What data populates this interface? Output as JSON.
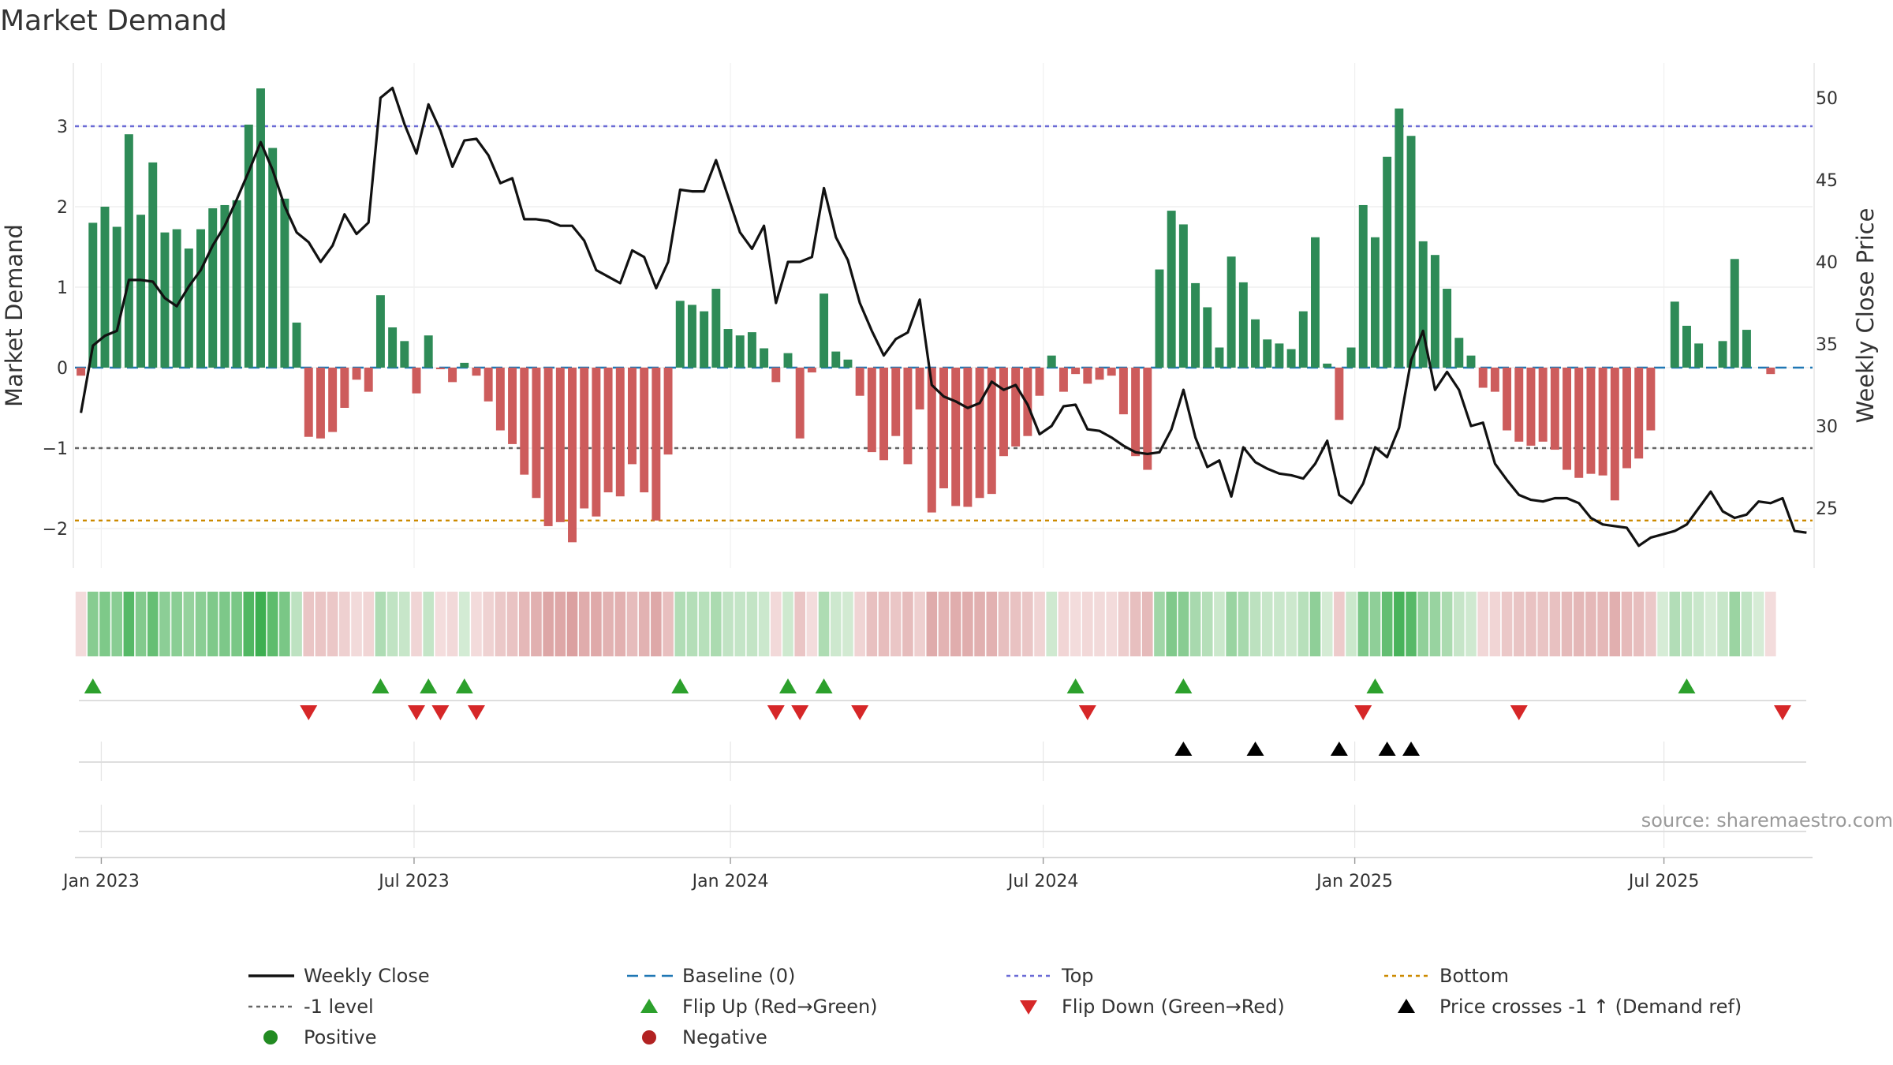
{
  "chart_data": {
    "type": "bar+line",
    "title": "Market Demand",
    "ylabel_left": "Market Demand",
    "ylabel_right": "Weekly Close Price",
    "ylim_left": [
      -2.5,
      3.7
    ],
    "ylim_right": [
      22,
      52
    ],
    "yticks_left": [
      3,
      2,
      1,
      0,
      -1,
      -2
    ],
    "ytick_labels_left": [
      "3",
      "2",
      "1",
      "0",
      "−1",
      "−2"
    ],
    "yticks_right": [
      50,
      45,
      40,
      35,
      30,
      25
    ],
    "ytick_labels_right": [
      "50",
      "45",
      "40",
      "35",
      "30",
      "25"
    ],
    "x_start": "2022-12-23",
    "week_count": 145,
    "x_ticks": [
      {
        "label": "Jan 2023",
        "week": 2.2
      },
      {
        "label": "Jul 2023",
        "week": 28.3
      },
      {
        "label": "Jan 2024",
        "week": 54.7
      },
      {
        "label": "Jul 2024",
        "week": 80.8
      },
      {
        "label": "Jan 2025",
        "week": 106.8
      },
      {
        "label": "Jul 2025",
        "week": 132.6
      }
    ],
    "reference_lines": [
      {
        "name": "Top",
        "value": 3.0,
        "color": "#6b6bd6"
      },
      {
        "name": "-1 level",
        "value": -1.0,
        "color": "#666666"
      },
      {
        "name": "Bottom",
        "value": -1.9,
        "color": "#cc8a00"
      },
      {
        "name": "Baseline (0)",
        "value": 0,
        "color": "#1f77b4"
      }
    ],
    "demand": [
      -0.1,
      1.8,
      2.0,
      1.75,
      2.9,
      1.9,
      2.55,
      1.68,
      1.72,
      1.48,
      1.72,
      1.98,
      2.02,
      2.08,
      3.02,
      3.47,
      2.73,
      2.1,
      0.56,
      -0.86,
      -0.88,
      -0.8,
      -0.5,
      -0.15,
      -0.3,
      0.9,
      0.5,
      0.33,
      -0.32,
      0.4,
      -0.02,
      -0.18,
      0.06,
      -0.1,
      -0.42,
      -0.78,
      -0.95,
      -1.33,
      -1.62,
      -1.97,
      -1.92,
      -2.17,
      -1.75,
      -1.85,
      -1.55,
      -1.6,
      -1.2,
      -1.55,
      -1.9,
      -1.08,
      0.83,
      0.78,
      0.7,
      0.98,
      0.48,
      0.4,
      0.44,
      0.24,
      -0.18,
      0.18,
      -0.88,
      -0.06,
      0.92,
      0.2,
      0.1,
      -0.35,
      -1.05,
      -1.15,
      -0.85,
      -1.2,
      -0.52,
      -1.8,
      -1.5,
      -1.72,
      -1.73,
      -1.62,
      -1.57,
      -1.1,
      -0.98,
      -0.85,
      -0.35,
      0.15,
      -0.3,
      -0.08,
      -0.2,
      -0.15,
      -0.1,
      -0.58,
      -1.1,
      -1.27,
      1.22,
      1.95,
      1.78,
      1.05,
      0.75,
      0.25,
      1.38,
      1.06,
      0.6,
      0.35,
      0.3,
      0.23,
      0.7,
      1.62,
      0.05,
      -0.65,
      0.25,
      2.02,
      1.62,
      2.62,
      3.22,
      2.88,
      1.57,
      1.4,
      0.98,
      0.37,
      0.15,
      -0.25,
      -0.3,
      -0.78,
      -0.92,
      -0.97,
      -0.92,
      -1.02,
      -1.27,
      -1.37,
      -1.32,
      -1.34,
      -1.65,
      -1.25,
      -1.13,
      -0.78,
      0.0,
      0.82,
      0.52,
      0.3,
      0.0,
      0.33,
      1.35,
      0.47,
      0.0,
      -0.08
    ],
    "weekly_close": [
      30.8,
      34.9,
      35.5,
      35.8,
      38.9,
      38.9,
      38.8,
      37.8,
      37.3,
      38.5,
      39.5,
      41.0,
      42.2,
      43.8,
      45.5,
      47.3,
      45.6,
      43.4,
      41.8,
      41.2,
      40.0,
      41.0,
      42.9,
      41.7,
      42.4,
      50.0,
      50.6,
      48.4,
      46.6,
      49.6,
      48.0,
      45.8,
      47.4,
      47.5,
      46.5,
      44.8,
      45.1,
      42.6,
      42.6,
      42.5,
      42.2,
      42.2,
      41.3,
      39.5,
      39.1,
      38.7,
      40.7,
      40.3,
      38.4,
      40.0,
      44.4,
      44.3,
      44.3,
      46.2,
      44.0,
      41.8,
      40.8,
      42.2,
      37.5,
      40.0,
      40.0,
      40.3,
      44.5,
      41.5,
      40.1,
      37.5,
      35.8,
      34.3,
      35.3,
      35.7,
      37.7,
      32.5,
      31.8,
      31.5,
      31.1,
      31.4,
      32.7,
      32.2,
      32.5,
      31.3,
      29.5,
      30.0,
      31.2,
      31.3,
      29.8,
      29.7,
      29.3,
      28.8,
      28.4,
      28.3,
      28.4,
      29.8,
      32.2,
      29.3,
      27.5,
      27.9,
      25.7,
      28.7,
      27.8,
      27.4,
      27.1,
      27.0,
      26.8,
      27.7,
      29.1,
      25.8,
      25.3,
      26.5,
      28.7,
      28.1,
      29.9,
      34.0,
      35.8,
      32.2,
      33.3,
      32.2,
      30.0,
      30.2,
      27.7,
      26.7,
      25.8,
      25.5,
      25.4,
      25.6,
      25.6,
      25.3,
      24.4,
      24.0,
      23.9,
      23.8,
      22.7,
      23.2,
      23.4,
      23.6,
      24.0,
      25.0,
      26.0,
      24.8,
      24.4,
      24.6,
      25.4,
      25.3,
      25.6,
      23.6,
      23.5
    ],
    "flip_up_weeks": [
      1,
      25,
      29,
      32,
      50,
      59,
      62,
      83,
      92,
      108,
      134
    ],
    "flip_down_weeks": [
      19,
      28,
      30,
      33,
      58,
      60,
      65,
      84,
      107,
      120,
      142
    ],
    "price_cross_weeks": [
      92,
      98,
      105,
      109,
      111
    ],
    "source": "source: sharemaestro.com",
    "legend": [
      {
        "label": "Weekly Close",
        "kind": "solid-line",
        "color": "#111111"
      },
      {
        "label": "Baseline (0)",
        "kind": "dashed-line",
        "color": "#1f77b4"
      },
      {
        "label": "Top",
        "kind": "dotted-line",
        "color": "#6b6bd6"
      },
      {
        "label": "Bottom",
        "kind": "dotted-line",
        "color": "#cc8a00"
      },
      {
        "label": "-1 level",
        "kind": "dotted-line",
        "color": "#666666"
      },
      {
        "label": "Flip Up (Red→Green)",
        "kind": "triangle-up",
        "color": "#2ca02c"
      },
      {
        "label": "Flip Down (Green→Red)",
        "kind": "triangle-down",
        "color": "#d62728"
      },
      {
        "label": "Price crosses -1 ↑ (Demand ref)",
        "kind": "triangle-up",
        "color": "#000000"
      },
      {
        "label": "Positive",
        "kind": "circle",
        "color": "#228b22"
      },
      {
        "label": "Negative",
        "kind": "circle",
        "color": "#b22222"
      }
    ],
    "colors": {
      "positive_bar": "#2e8b57",
      "negative_bar": "#cd5c5c",
      "price_line": "#111111"
    }
  }
}
